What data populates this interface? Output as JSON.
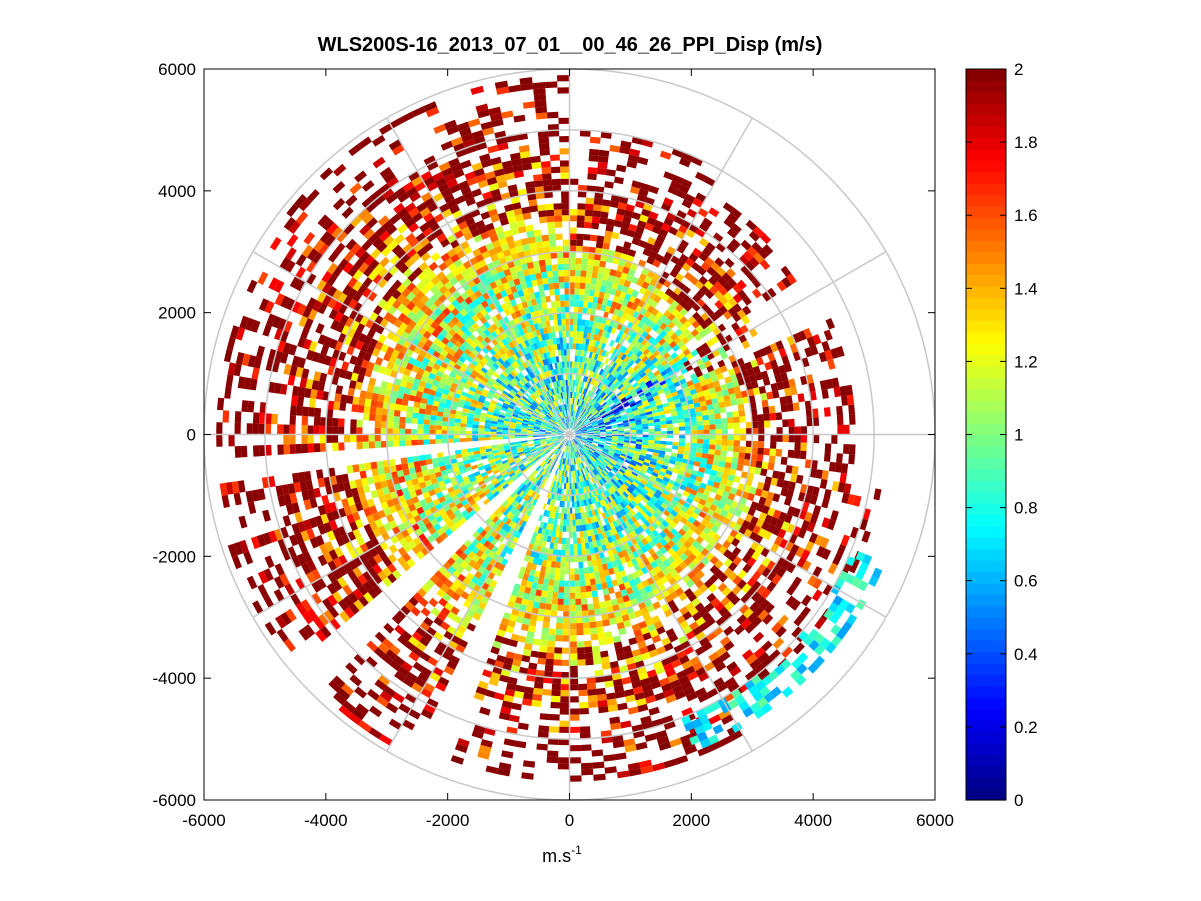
{
  "chart_data": {
    "type": "heatmap",
    "subtype": "polar-ppi",
    "title": "WLS200S-16_2013_07_01__00_46_26_PPI_Disp (m/s)",
    "xlabel_base": "m.s",
    "xlabel_exponent": "-1",
    "xlim": [
      -6000,
      6000
    ],
    "ylim": [
      -6000,
      6000
    ],
    "xticks": [
      -6000,
      -4000,
      -2000,
      0,
      2000,
      4000,
      6000
    ],
    "yticks": [
      -6000,
      -4000,
      -2000,
      0,
      2000,
      4000,
      6000
    ],
    "xtick_labels": [
      "-6000",
      "-4000",
      "-2000",
      "0",
      "2000",
      "4000",
      "6000"
    ],
    "ytick_labels": [
      "-6000",
      "-4000",
      "-2000",
      "0",
      "2000",
      "4000",
      "6000"
    ],
    "polar_grid_ranges": [
      1000,
      2000,
      3000,
      4000,
      5000,
      6000
    ],
    "polar_grid_angles_deg": [
      0,
      30,
      60,
      90,
      120,
      150,
      180,
      210,
      240,
      270,
      300,
      330
    ],
    "max_range": 6000,
    "colorbar": {
      "colormap": "jet",
      "clim": [
        0,
        2
      ],
      "ticks": [
        0,
        0.2,
        0.4,
        0.6,
        0.8,
        1,
        1.2,
        1.4,
        1.6,
        1.8,
        2
      ],
      "tick_labels": [
        "0",
        "0.2",
        "0.4",
        "0.6",
        "0.8",
        "1",
        "1.2",
        "1.4",
        "1.6",
        "1.8",
        "2"
      ]
    },
    "gaps_deg": [
      {
        "from": 200,
        "to": 206
      },
      {
        "from": 225,
        "to": 229
      },
      {
        "from": 262,
        "to": 266
      }
    ],
    "sectors": [
      {
        "az_from": 0,
        "az_to": 30,
        "r_max": 5000,
        "inner_value": 0.75,
        "outer_value": 1.95
      },
      {
        "az_from": 30,
        "az_to": 55,
        "r_max": 4600,
        "inner_value": 0.7,
        "outer_value": 1.9
      },
      {
        "az_from": 55,
        "az_to": 65,
        "r_max": 3500,
        "inner_value": 0.2,
        "outer_value": 1.6
      },
      {
        "az_from": 65,
        "az_to": 100,
        "r_max": 4700,
        "inner_value": 0.6,
        "outer_value": 1.95
      },
      {
        "az_from": 100,
        "az_to": 150,
        "r_max": 5200,
        "inner_value": 0.7,
        "outer_value": 1.9
      },
      {
        "az_from": 150,
        "az_to": 210,
        "r_max": 5700,
        "inner_value": 0.8,
        "outer_value": 1.85
      },
      {
        "az_from": 210,
        "az_to": 260,
        "r_max": 5900,
        "inner_value": 0.85,
        "outer_value": 1.95
      },
      {
        "az_from": 260,
        "az_to": 300,
        "r_max": 5800,
        "inner_value": 0.8,
        "outer_value": 1.95
      },
      {
        "az_from": 300,
        "az_to": 340,
        "r_max": 5900,
        "inner_value": 0.8,
        "outer_value": 1.95
      },
      {
        "az_from": 340,
        "az_to": 360,
        "r_max": 5900,
        "inner_value": 0.75,
        "outer_value": 1.9
      }
    ],
    "outer_arc_bands": [
      {
        "az_from": 112,
        "az_to": 158,
        "r_from": 5000,
        "r_to": 5600,
        "value": 0.75
      }
    ]
  },
  "colors": {
    "background": "#ffffff",
    "axis": "#000000",
    "grid": "#c8c8c8"
  }
}
